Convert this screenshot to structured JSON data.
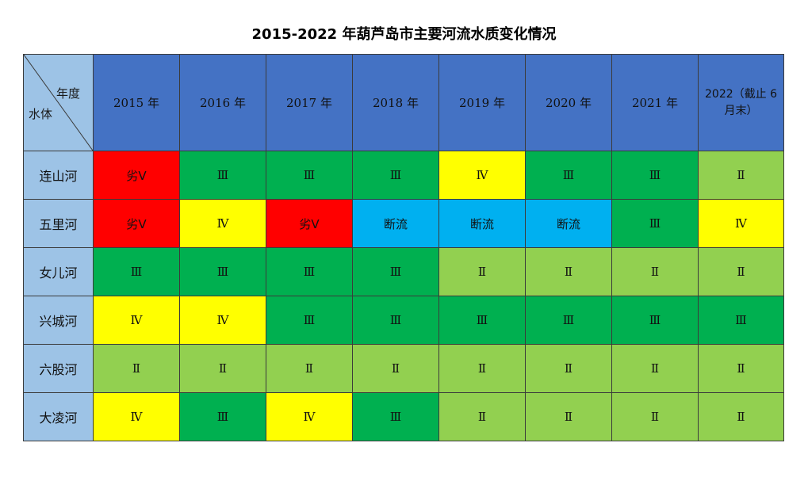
{
  "title": "2015-2022 年葫芦岛市主要河流水质变化情况",
  "corner": {
    "year_label": "年度",
    "water_label": "水体"
  },
  "years": [
    "2015 年",
    "2016 年",
    "2017 年",
    "2018 年",
    "2019 年",
    "2020 年",
    "2021 年",
    "2022（截止 6 月末）"
  ],
  "colors": {
    "劣Ⅴ": "#ff0000",
    "Ⅳ": "#ffff00",
    "Ⅲ": "#00b050",
    "Ⅱ": "#92d050",
    "断流": "#00b0f0",
    "header": "#4472c4",
    "river": "#9dc3e6"
  },
  "rows": [
    {
      "river": "连山河",
      "values": [
        "劣Ⅴ",
        "Ⅲ",
        "Ⅲ",
        "Ⅲ",
        "Ⅳ",
        "Ⅲ",
        "Ⅲ",
        "Ⅱ"
      ]
    },
    {
      "river": "五里河",
      "values": [
        "劣Ⅴ",
        "Ⅳ",
        "劣Ⅴ",
        "断流",
        "断流",
        "断流",
        "Ⅲ",
        "Ⅳ"
      ]
    },
    {
      "river": "女儿河",
      "values": [
        "Ⅲ",
        "Ⅲ",
        "Ⅲ",
        "Ⅲ",
        "Ⅱ",
        "Ⅱ",
        "Ⅱ",
        "Ⅱ"
      ]
    },
    {
      "river": "兴城河",
      "values": [
        "Ⅳ",
        "Ⅳ",
        "Ⅲ",
        "Ⅲ",
        "Ⅲ",
        "Ⅲ",
        "Ⅲ",
        "Ⅲ"
      ]
    },
    {
      "river": "六股河",
      "values": [
        "Ⅱ",
        "Ⅱ",
        "Ⅱ",
        "Ⅱ",
        "Ⅱ",
        "Ⅱ",
        "Ⅱ",
        "Ⅱ"
      ]
    },
    {
      "river": "大凌河",
      "values": [
        "Ⅳ",
        "Ⅲ",
        "Ⅳ",
        "Ⅲ",
        "Ⅱ",
        "Ⅱ",
        "Ⅱ",
        "Ⅱ"
      ]
    }
  ]
}
